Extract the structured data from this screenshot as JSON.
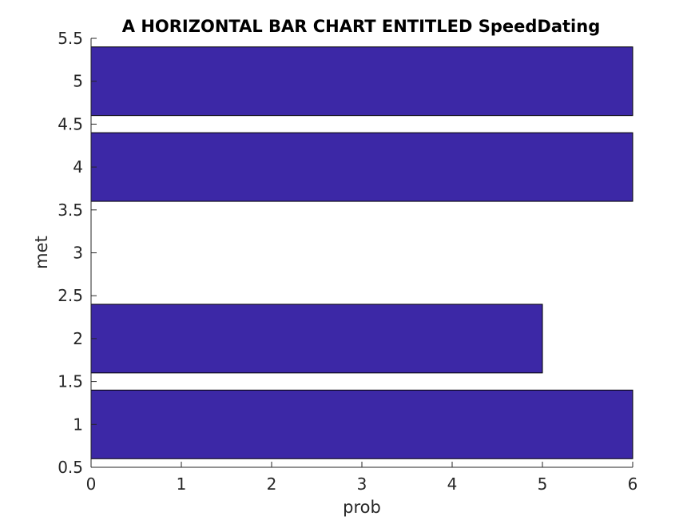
{
  "chart_data": {
    "type": "bar",
    "orientation": "horizontal",
    "title": "A HORIZONTAL BAR CHART ENTITLED SpeedDating",
    "xlabel": "prob",
    "ylabel": "met",
    "categories": [
      1,
      2,
      4,
      5
    ],
    "values": [
      6,
      5,
      6,
      6
    ],
    "xlim": [
      0,
      6
    ],
    "ylim": [
      0.5,
      5.5
    ],
    "xticks": [
      "0",
      "1",
      "2",
      "3",
      "4",
      "5",
      "6"
    ],
    "yticks": [
      "0.5",
      "1",
      "1.5",
      "2",
      "2.5",
      "3",
      "3.5",
      "4",
      "4.5",
      "5",
      "5.5"
    ],
    "bar_color": "#3c28a6",
    "grid": false,
    "legend": "none"
  }
}
